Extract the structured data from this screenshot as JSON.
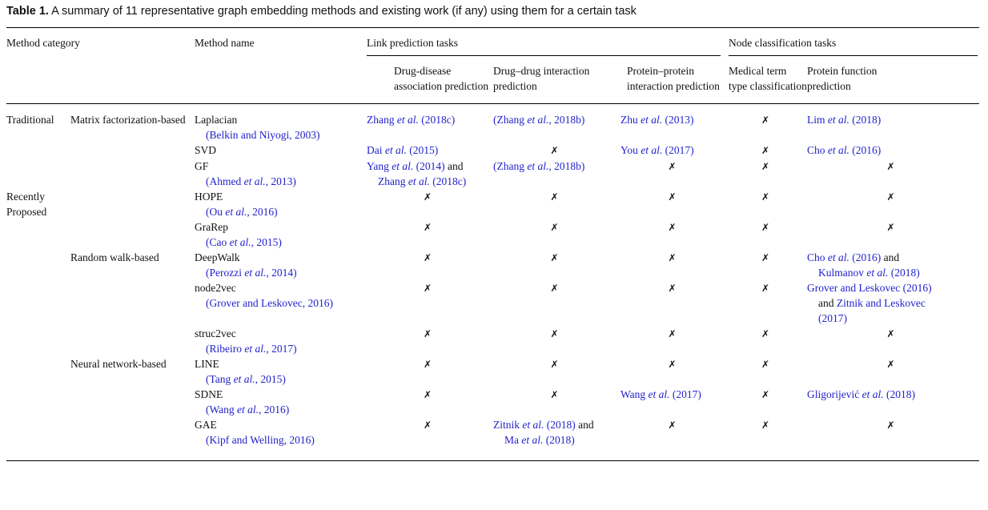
{
  "colors": {
    "citation": "#2222cc",
    "text": "#111111"
  },
  "marks": {
    "cross": "✗"
  },
  "caption": {
    "label": "Table 1.",
    "text": "A summary of 11 representative graph embedding methods and existing work (if any) using them for a certain task"
  },
  "table": {
    "header": {
      "method_category": "Method category",
      "method_name": "Method name",
      "groups": [
        {
          "label": "Link prediction tasks",
          "span": 3
        },
        {
          "label": "Node classification tasks",
          "span": 2
        }
      ],
      "subheaders": [
        "Drug-disease association prediction",
        "Drug–drug interaction prediction",
        "Protein–protein interaction prediction",
        "Medical term type classification",
        "Protein function prediction"
      ]
    },
    "rows": [
      {
        "category": "Traditional",
        "subcategory": "Matrix factorization-based",
        "method_name": "Laplacian",
        "method_cite": "(Belkin and Niyogi, 2003)",
        "cells": [
          [
            [
              {
                "t": "Zhang et al. (2018c)",
                "c": true
              }
            ]
          ],
          [
            [
              {
                "t": "(Zhang et al., 2018b)",
                "c": true
              }
            ]
          ],
          [
            [
              {
                "t": "Zhu et al. (2013)",
                "c": true
              }
            ]
          ],
          "X",
          [
            [
              {
                "t": "Lim et al. (2018)",
                "c": true
              }
            ]
          ]
        ]
      },
      {
        "category": "",
        "subcategory": "",
        "method_name": "SVD",
        "method_cite": "",
        "cells": [
          [
            [
              {
                "t": "Dai et al. (2015)",
                "c": true
              }
            ]
          ],
          "X",
          [
            [
              {
                "t": "You et al. (2017)",
                "c": true
              }
            ]
          ],
          "X",
          [
            [
              {
                "t": "Cho et al. (2016)",
                "c": true
              }
            ]
          ]
        ]
      },
      {
        "category": "",
        "subcategory": "",
        "method_name": "GF",
        "method_cite": "(Ahmed et al., 2013)",
        "cells": [
          [
            [
              {
                "t": "Yang et al. (2014)",
                "c": true
              },
              {
                "t": " and",
                "c": false
              }
            ],
            [
              {
                "t": "Zhang et al. (2018c)",
                "c": true
              }
            ]
          ],
          [
            [
              {
                "t": "(Zhang et al., 2018b)",
                "c": true
              }
            ]
          ],
          "X",
          "X",
          "X"
        ]
      },
      {
        "category": "Recently Proposed",
        "subcategory": "",
        "method_name": "HOPE",
        "method_cite": "(Ou et al., 2016)",
        "cells": [
          "X",
          "X",
          "X",
          "X",
          "X"
        ]
      },
      {
        "category": "",
        "subcategory": "",
        "method_name": "GraRep",
        "method_cite": "(Cao et al., 2015)",
        "cells": [
          "X",
          "X",
          "X",
          "X",
          "X"
        ]
      },
      {
        "category": "",
        "subcategory": "Random walk-based",
        "method_name": "DeepWalk",
        "method_cite": "(Perozzi et al., 2014)",
        "cells": [
          "X",
          "X",
          "X",
          "X",
          [
            [
              {
                "t": "Cho et al. (2016)",
                "c": true
              },
              {
                "t": " and",
                "c": false
              }
            ],
            [
              {
                "t": "Kulmanov et al. (2018)",
                "c": true
              }
            ]
          ]
        ]
      },
      {
        "category": "",
        "subcategory": "",
        "method_name": "node2vec",
        "method_cite": "(Grover and Leskovec, 2016)",
        "cells": [
          "X",
          "X",
          "X",
          "X",
          [
            [
              {
                "t": "Grover and Leskovec (2016)",
                "c": true
              }
            ],
            [
              {
                "t": "and ",
                "c": false
              },
              {
                "t": "Zitnik and Leskovec",
                "c": true
              }
            ],
            [
              {
                "t": "(2017)",
                "c": true
              }
            ]
          ]
        ]
      },
      {
        "category": "",
        "subcategory": "",
        "method_name": "struc2vec",
        "method_cite": "(Ribeiro et al., 2017)",
        "cells": [
          "X",
          "X",
          "X",
          "X",
          "X"
        ]
      },
      {
        "category": "",
        "subcategory": "Neural network-based",
        "method_name": "LINE",
        "method_cite": "(Tang et al., 2015)",
        "cells": [
          "X",
          "X",
          "X",
          "X",
          "X"
        ]
      },
      {
        "category": "",
        "subcategory": "",
        "method_name": "SDNE",
        "method_cite": "(Wang et al., 2016)",
        "cells": [
          "X",
          "X",
          [
            [
              {
                "t": "Wang et al. (2017)",
                "c": true
              }
            ]
          ],
          "X",
          [
            [
              {
                "t": "Gligorijević et al. (2018)",
                "c": true
              }
            ]
          ]
        ]
      },
      {
        "category": "",
        "subcategory": "",
        "method_name": "GAE",
        "method_cite": "(Kipf and Welling, 2016)",
        "cells": [
          "X",
          [
            [
              {
                "t": "Zitnik et al. (2018)",
                "c": true
              },
              {
                "t": " and",
                "c": false
              }
            ],
            [
              {
                "t": "Ma et al. (2018)",
                "c": true
              }
            ]
          ],
          "X",
          "X",
          "X"
        ]
      }
    ]
  }
}
